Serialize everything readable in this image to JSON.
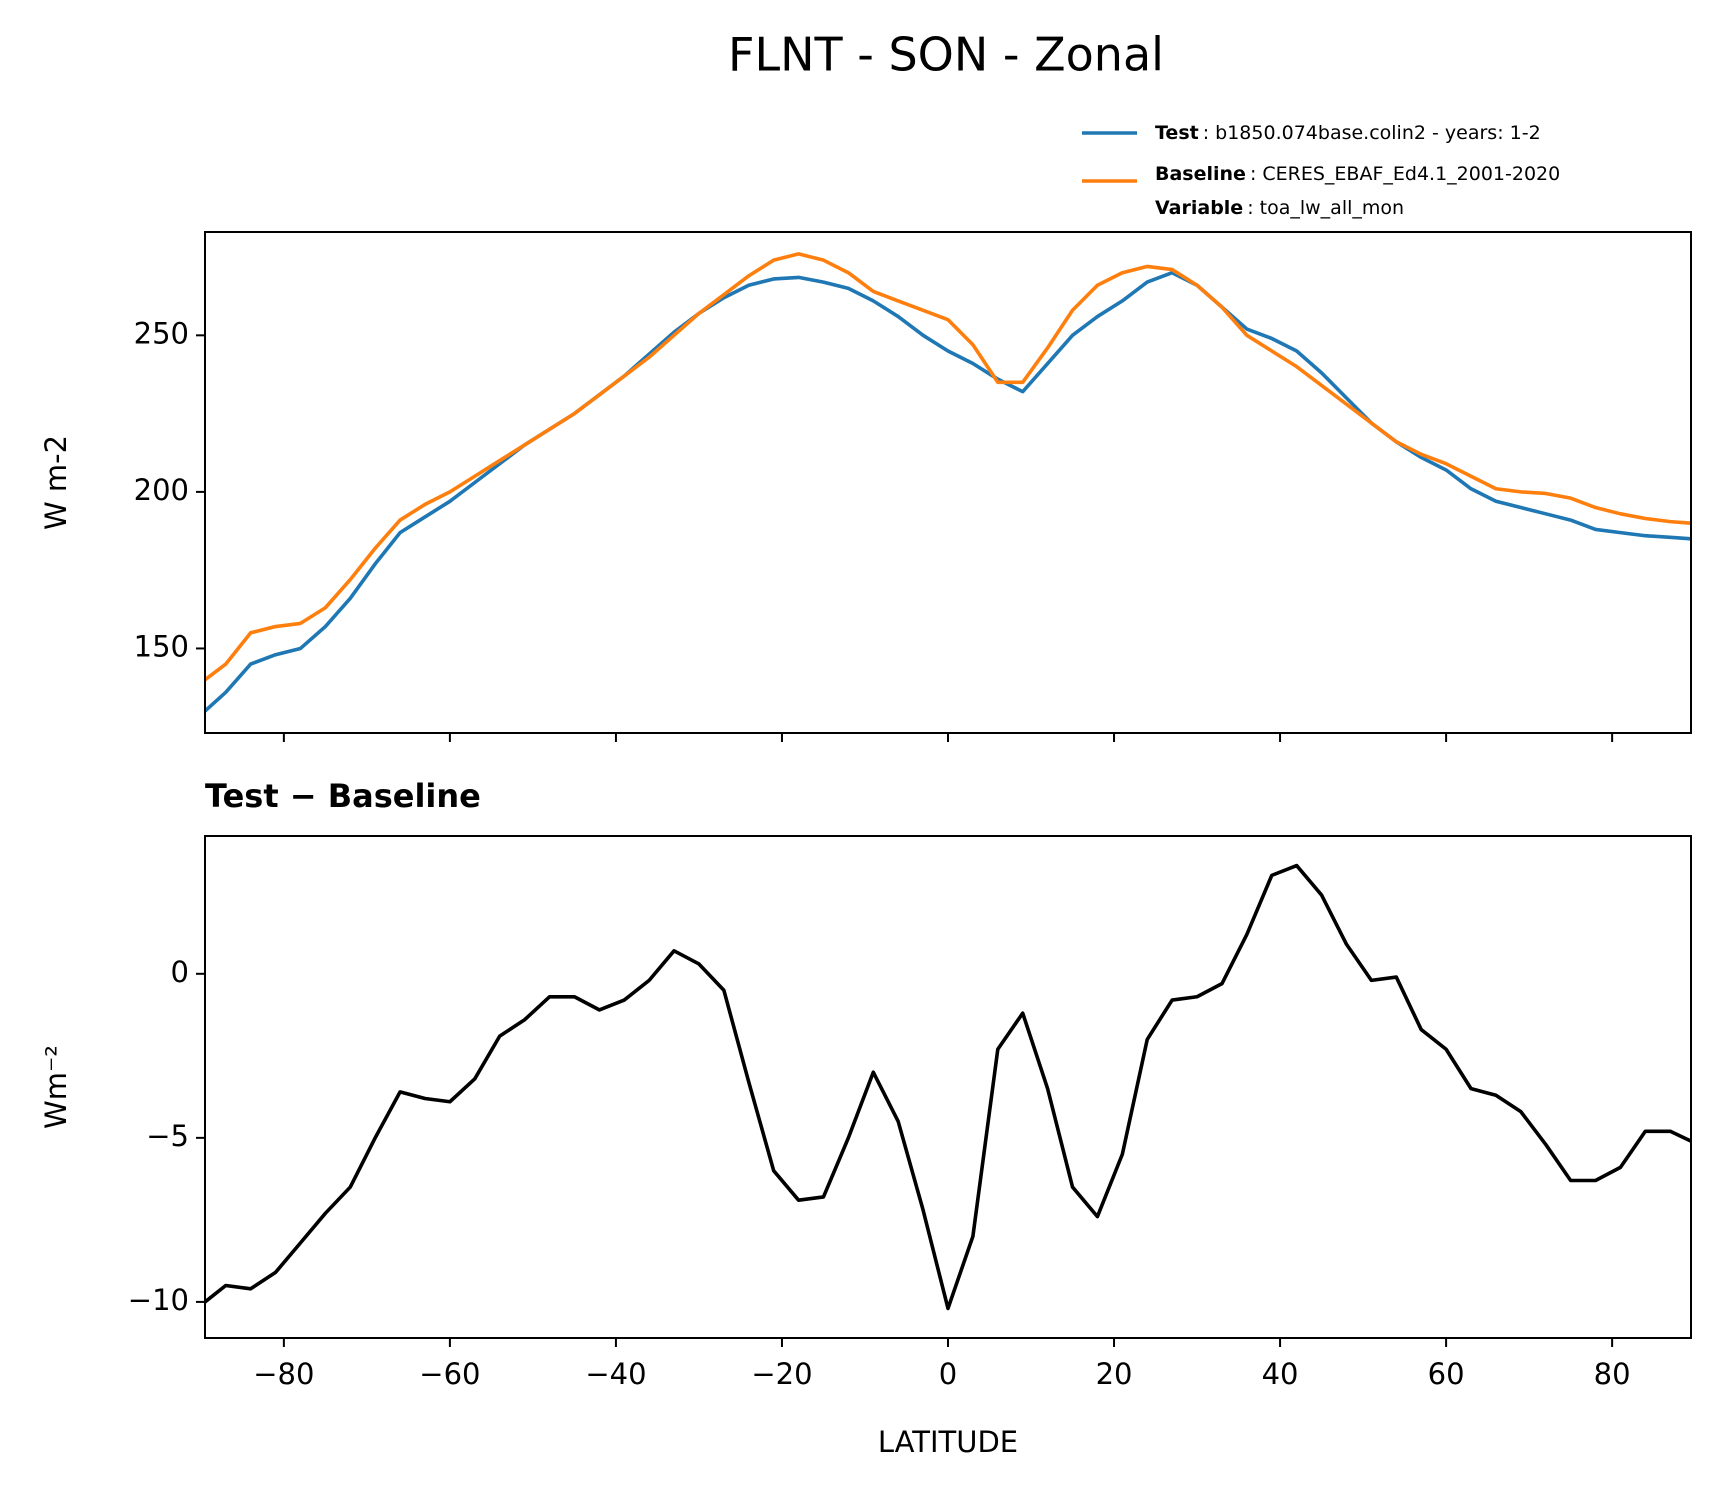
{
  "title": "FLNT - SON - Zonal",
  "chart_data": [
    {
      "type": "line",
      "ylabel": "W m-2",
      "x": [
        -89.5,
        -87,
        -84,
        -81,
        -78,
        -75,
        -72,
        -69,
        -66,
        -63,
        -60,
        -57,
        -54,
        -51,
        -48,
        -45,
        -42,
        -39,
        -36,
        -33,
        -30,
        -27,
        -24,
        -21,
        -18,
        -15,
        -12,
        -9,
        -6,
        -3,
        0,
        3,
        6,
        9,
        12,
        15,
        18,
        21,
        24,
        27,
        30,
        33,
        36,
        39,
        42,
        45,
        48,
        51,
        54,
        57,
        60,
        63,
        66,
        69,
        72,
        75,
        78,
        81,
        84,
        87,
        89.5
      ],
      "xlim": [
        -89.5,
        89.5
      ],
      "ylim": [
        123,
        283
      ],
      "yticks": [
        150,
        200,
        250
      ],
      "series": [
        {
          "name": "Test",
          "label": ": b1850.074base.colin2 - years: 1-2",
          "color": "#1f77b4",
          "values": [
            130,
            136,
            145,
            148,
            150,
            157,
            166,
            177,
            187,
            192,
            197,
            203,
            209,
            215,
            220,
            225,
            231,
            237,
            244,
            251,
            257,
            262,
            266,
            268,
            268.5,
            267,
            265,
            261,
            256,
            250,
            245,
            241,
            236,
            232,
            241,
            250,
            256,
            261,
            267,
            270,
            266,
            259,
            252,
            249,
            245,
            238,
            230,
            222,
            216,
            211,
            207,
            201,
            197,
            195,
            193,
            191,
            188,
            187,
            186,
            185.5,
            185
          ]
        },
        {
          "name": "Baseline",
          "label": ": CERES_EBAF_Ed4.1_2001-2020",
          "color": "#ff7f0e",
          "values": [
            140,
            145,
            155,
            157,
            158,
            163,
            172,
            182,
            191,
            196,
            200,
            205,
            210,
            215,
            220,
            225,
            231,
            237,
            243,
            250,
            257,
            263,
            269,
            274,
            276,
            274,
            270,
            264,
            261,
            258,
            255,
            247,
            235,
            235,
            246,
            258,
            266,
            270,
            272,
            271,
            266,
            259,
            250,
            245,
            240,
            234,
            228,
            222,
            216,
            212,
            209,
            205,
            201,
            200,
            199.5,
            198,
            195,
            193,
            191.5,
            190.5,
            190
          ]
        }
      ],
      "legend_extra": {
        "name": "Variable",
        "label": ": toa_lw_all_mon"
      }
    },
    {
      "type": "line",
      "title": "Test − Baseline",
      "xlabel": "LATITUDE",
      "ylabel": "Wm⁻²",
      "x": [
        -89.5,
        -87,
        -84,
        -81,
        -78,
        -75,
        -72,
        -69,
        -66,
        -63,
        -60,
        -57,
        -54,
        -51,
        -48,
        -45,
        -42,
        -39,
        -36,
        -33,
        -30,
        -27,
        -24,
        -21,
        -18,
        -15,
        -12,
        -9,
        -6,
        -3,
        0,
        3,
        6,
        9,
        12,
        15,
        18,
        21,
        24,
        27,
        30,
        33,
        36,
        39,
        42,
        45,
        48,
        51,
        54,
        57,
        60,
        63,
        66,
        69,
        72,
        75,
        78,
        81,
        84,
        87,
        89.5
      ],
      "xlim": [
        -89.5,
        89.5
      ],
      "ylim": [
        -11.1,
        4.2
      ],
      "xticks": [
        {
          "value": -80,
          "label": "−80"
        },
        {
          "value": -60,
          "label": "−60"
        },
        {
          "value": -40,
          "label": "−40"
        },
        {
          "value": -20,
          "label": "−20"
        },
        0,
        20,
        40,
        60,
        80
      ],
      "yticks": [
        {
          "value": -10,
          "label": "−10"
        },
        {
          "value": -5,
          "label": "−5"
        },
        0
      ],
      "series": [
        {
          "color": "#000000",
          "values": [
            -10,
            -9.5,
            -9.6,
            -9.1,
            -8.2,
            -7.3,
            -6.5,
            -5,
            -3.6,
            -3.8,
            -3.9,
            -3.2,
            -1.9,
            -1.4,
            -0.7,
            -0.7,
            -1.1,
            -0.8,
            -0.2,
            0.7,
            0.3,
            -0.5,
            -3.3,
            -6,
            -6.9,
            -6.8,
            -5,
            -3,
            -4.5,
            -7.2,
            -10.2,
            -8,
            -2.3,
            -1.2,
            -3.5,
            -6.5,
            -7.4,
            -5.5,
            -2,
            -0.8,
            -0.7,
            -0.3,
            1.2,
            3,
            3.3,
            2.4,
            0.9,
            -0.2,
            -0.1,
            -1.7,
            -2.3,
            -3.5,
            -3.7,
            -4.2,
            -5.2,
            -6.3,
            -6.3,
            -5.9,
            -4.8,
            -4.8,
            -5.1
          ]
        }
      ]
    }
  ]
}
